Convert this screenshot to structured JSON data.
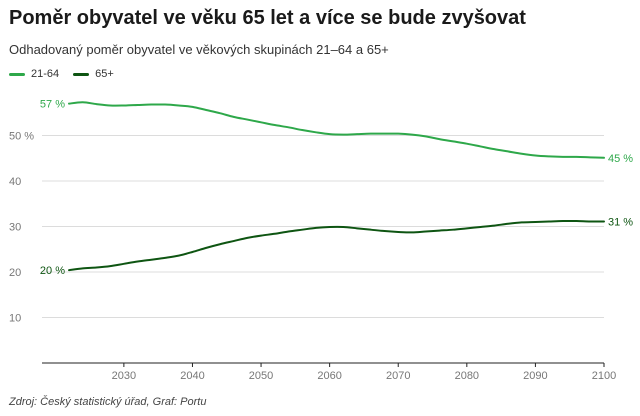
{
  "header": {
    "title": "Poměr obyvatel ve věku 65 let a více se bude zvyšovat",
    "subtitle": "Odhadovaný poměr obyvatel ve věkových skupinách 21–64 a 65+"
  },
  "footer": {
    "source": "Zdroj: Český statistický úřad, Graf: Portu"
  },
  "chart_data": {
    "type": "line",
    "title": "Poměr obyvatel ve věku 65 let a více se bude zvyšovat",
    "subtitle": "Odhadovaný poměr obyvatel ve věkových skupinách 21–64 a 65+",
    "xlabel": "",
    "ylabel": "",
    "xlim": [
      2022,
      2100
    ],
    "ylim": [
      0,
      60
    ],
    "x_ticks": [
      2030,
      2040,
      2050,
      2060,
      2070,
      2080,
      2090,
      2100
    ],
    "y_ticks": [
      {
        "value": 10,
        "label": "10"
      },
      {
        "value": 20,
        "label": "20"
      },
      {
        "value": 30,
        "label": "30"
      },
      {
        "value": 40,
        "label": "40"
      },
      {
        "value": 50,
        "label": "50 %"
      }
    ],
    "grid": true,
    "legend": "top-left",
    "series": [
      {
        "name": "21-64",
        "color": "#2ea84a",
        "start_label": "57 %",
        "end_label": "45 %",
        "x": [
          2022,
          2024,
          2026,
          2028,
          2030,
          2032,
          2034,
          2036,
          2038,
          2040,
          2042,
          2044,
          2046,
          2048,
          2050,
          2052,
          2054,
          2056,
          2058,
          2060,
          2062,
          2064,
          2066,
          2068,
          2070,
          2072,
          2074,
          2076,
          2078,
          2080,
          2082,
          2084,
          2086,
          2088,
          2090,
          2092,
          2094,
          2096,
          2098,
          2100
        ],
        "values": [
          57.0,
          57.3,
          56.9,
          56.6,
          56.6,
          56.7,
          56.8,
          56.8,
          56.6,
          56.3,
          55.6,
          54.9,
          54.1,
          53.5,
          52.9,
          52.3,
          51.8,
          51.2,
          50.7,
          50.3,
          50.2,
          50.3,
          50.4,
          50.4,
          50.4,
          50.2,
          49.8,
          49.2,
          48.7,
          48.2,
          47.6,
          47.0,
          46.5,
          46.0,
          45.6,
          45.4,
          45.3,
          45.3,
          45.2,
          45.1
        ]
      },
      {
        "name": "65+",
        "color": "#0e5512",
        "start_label": "20 %",
        "end_label": "31 %",
        "x": [
          2022,
          2024,
          2026,
          2028,
          2030,
          2032,
          2034,
          2036,
          2038,
          2040,
          2042,
          2044,
          2046,
          2048,
          2050,
          2052,
          2054,
          2056,
          2058,
          2060,
          2062,
          2064,
          2066,
          2068,
          2070,
          2072,
          2074,
          2076,
          2078,
          2080,
          2082,
          2084,
          2086,
          2088,
          2090,
          2092,
          2094,
          2096,
          2098,
          2100
        ],
        "values": [
          20.4,
          20.8,
          21.0,
          21.3,
          21.8,
          22.3,
          22.7,
          23.1,
          23.6,
          24.4,
          25.3,
          26.1,
          26.8,
          27.5,
          28.0,
          28.4,
          28.9,
          29.3,
          29.7,
          29.9,
          29.9,
          29.6,
          29.3,
          29.0,
          28.8,
          28.7,
          28.9,
          29.1,
          29.3,
          29.6,
          29.9,
          30.2,
          30.6,
          30.9,
          31.0,
          31.1,
          31.2,
          31.2,
          31.1,
          31.1
        ]
      }
    ]
  }
}
